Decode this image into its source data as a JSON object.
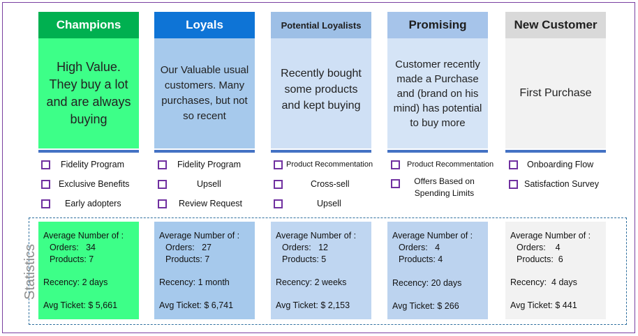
{
  "side_label": "Statistics",
  "colors": {
    "champions": {
      "header": "#00b050",
      "body": "#3dff88",
      "stats": "#3dff88"
    },
    "loyals": {
      "header": "#0e74d6",
      "body": "#a6c9ec",
      "stats": "#a6c9ec"
    },
    "potential": {
      "header": "#9dbfe6",
      "body": "#cfe0f5",
      "stats": "#bfd6f1"
    },
    "promising": {
      "header": "#a6c4ea",
      "body": "#d5e4f6",
      "stats": "#bcd3ef"
    },
    "newcustomer": {
      "header": "#d9d9d9",
      "body": "#f2f2f2",
      "stats": "#f2f2f2"
    }
  },
  "segments": [
    {
      "title": "Champions",
      "description": "High Value. They buy a lot and are always buying",
      "actions": [
        "Fidelity Program",
        "Exclusive Benefits",
        "Early adopters"
      ],
      "stats": {
        "heading": "Average Number of :",
        "orders": "Orders:   34",
        "products": "Products: 7",
        "recency": "Recency: 2 days",
        "ticket": "Avg Ticket: $ 5,661"
      }
    },
    {
      "title": "Loyals",
      "description": "Our Valuable usual customers. Many purchases, but not so recent",
      "actions": [
        "Fidelity Program",
        "Upsell",
        "Review Request"
      ],
      "stats": {
        "heading": "Average Number of :",
        "orders": "Orders:   27",
        "products": "Products: 7",
        "recency": "Recency: 1 month",
        "ticket": "Avg Ticket: $ 6,741"
      }
    },
    {
      "title": "Potential Loyalists",
      "description": "Recently bought some products and kept buying",
      "actions": [
        "Product Recommentation",
        "Cross-sell",
        "Upsell"
      ],
      "stats": {
        "heading": "Average Number of :",
        "orders": "Orders:   12",
        "products": "Products: 5",
        "recency": "Recency: 2 weeks",
        "ticket": "Avg Ticket: $ 2,153"
      }
    },
    {
      "title": "Promising",
      "description": "Customer recently made a Purchase and (brand on his mind) has potential to buy more",
      "actions": [
        "Product Recommentation",
        "Offers Based on Spending Limits"
      ],
      "stats": {
        "heading": "Average Number of :",
        "orders": "Orders:   4",
        "products": "Products: 4",
        "recency": "Recency: 20 days",
        "ticket": "Avg Ticket: $ 266"
      }
    },
    {
      "title": "New Customer",
      "description": "First Purchase",
      "actions": [
        "Onboarding Flow",
        "Satisfaction Survey"
      ],
      "stats": {
        "heading": "Average Number of :",
        "orders": "Orders:    4",
        "products": "Products:  6",
        "recency": "Recency:  4 days",
        "ticket": "Avg Ticket: $ 441"
      }
    }
  ]
}
